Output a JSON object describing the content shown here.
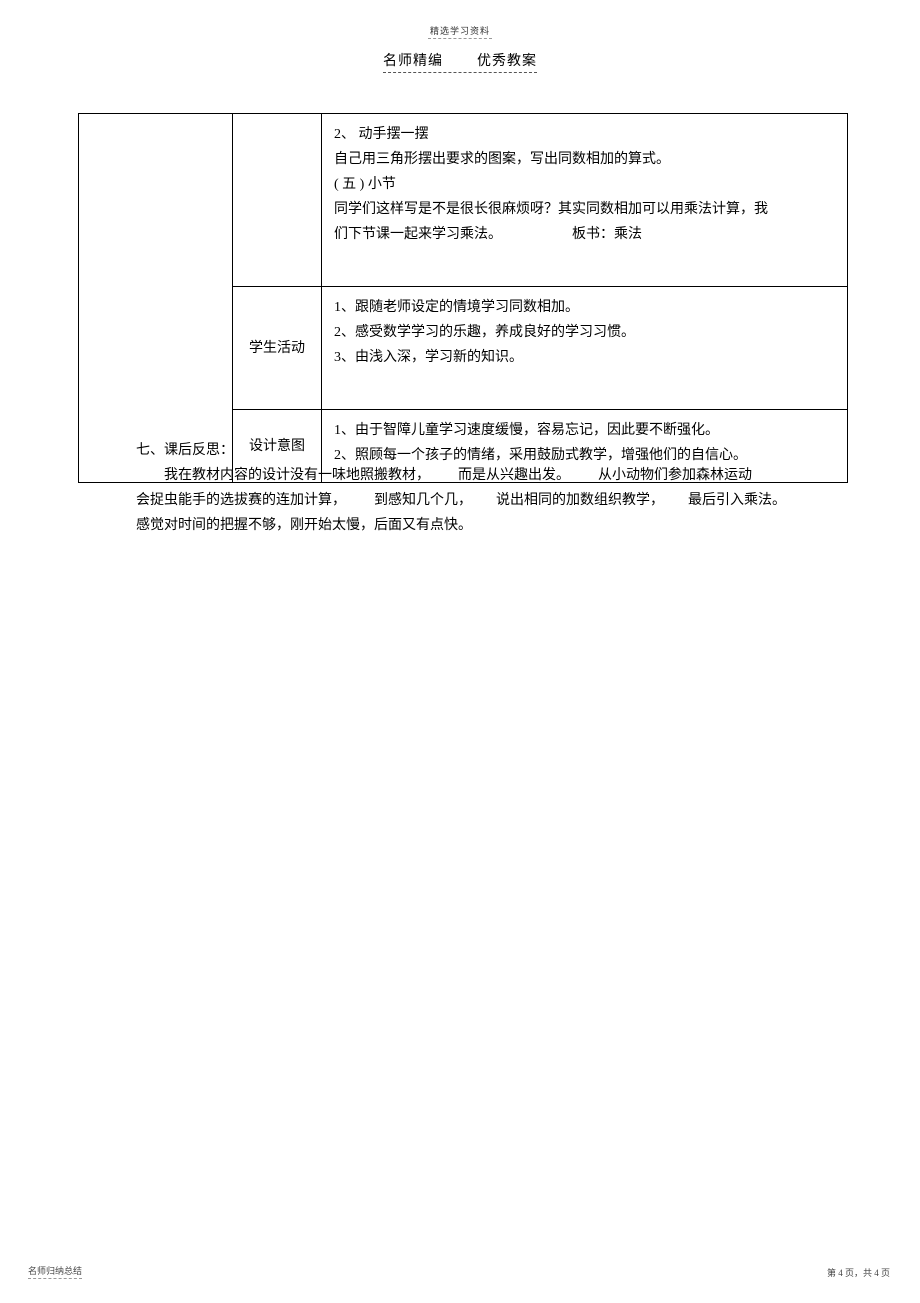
{
  "header": {
    "top": "精选学习资料",
    "left": "名师精编",
    "right": "优秀教案"
  },
  "table": {
    "row1": {
      "content": [
        "2、 动手摆一摆",
        "自己用三角形摆出要求的图案，写出同数相加的算式。",
        "( 五 ) 小节",
        "同学们这样写是不是很长很麻烦呀？其实同数相加可以用乘法计算，我",
        "们下节课一起来学习乘法。"
      ],
      "board_label": "板书：乘法"
    },
    "row2": {
      "label": "学生活动",
      "content": [
        "1、跟随老师设定的情境学习同数相加。",
        "2、感受数学学习的乐趣，养成良好的学习习惯。",
        "3、由浅入深，学习新的知识。"
      ]
    },
    "row3": {
      "label": "设计意图",
      "content": [
        "1、由于智障儿童学习速度缓慢，容易忘记，因此要不断强化。",
        "2、照顾每一个孩子的情绪，采用鼓励式教学，增强他们的自信心。"
      ]
    }
  },
  "reflection": {
    "title": "七、课后反思：",
    "lines": [
      {
        "seg1": "我在教材内容的设计没有一味地照搬教材，",
        "seg2": "而是从兴趣出发。",
        "seg3": "从小动物们参加森林运动"
      },
      {
        "seg1": "会捉虫能手的选拔赛的连加计算，",
        "seg2": "到感知几个几，",
        "seg3": "说出相同的加数组织教学，",
        "seg4": "最后引入乘法。"
      },
      {
        "seg1": "感觉对时间的把握不够，刚开始太慢，后面又有点快。"
      }
    ]
  },
  "footer": {
    "left": "名师归纳总结",
    "right_prefix": "第 ",
    "page_current": "4",
    "right_mid": " 页，共 ",
    "page_total": "4",
    "right_suffix": " 页"
  }
}
